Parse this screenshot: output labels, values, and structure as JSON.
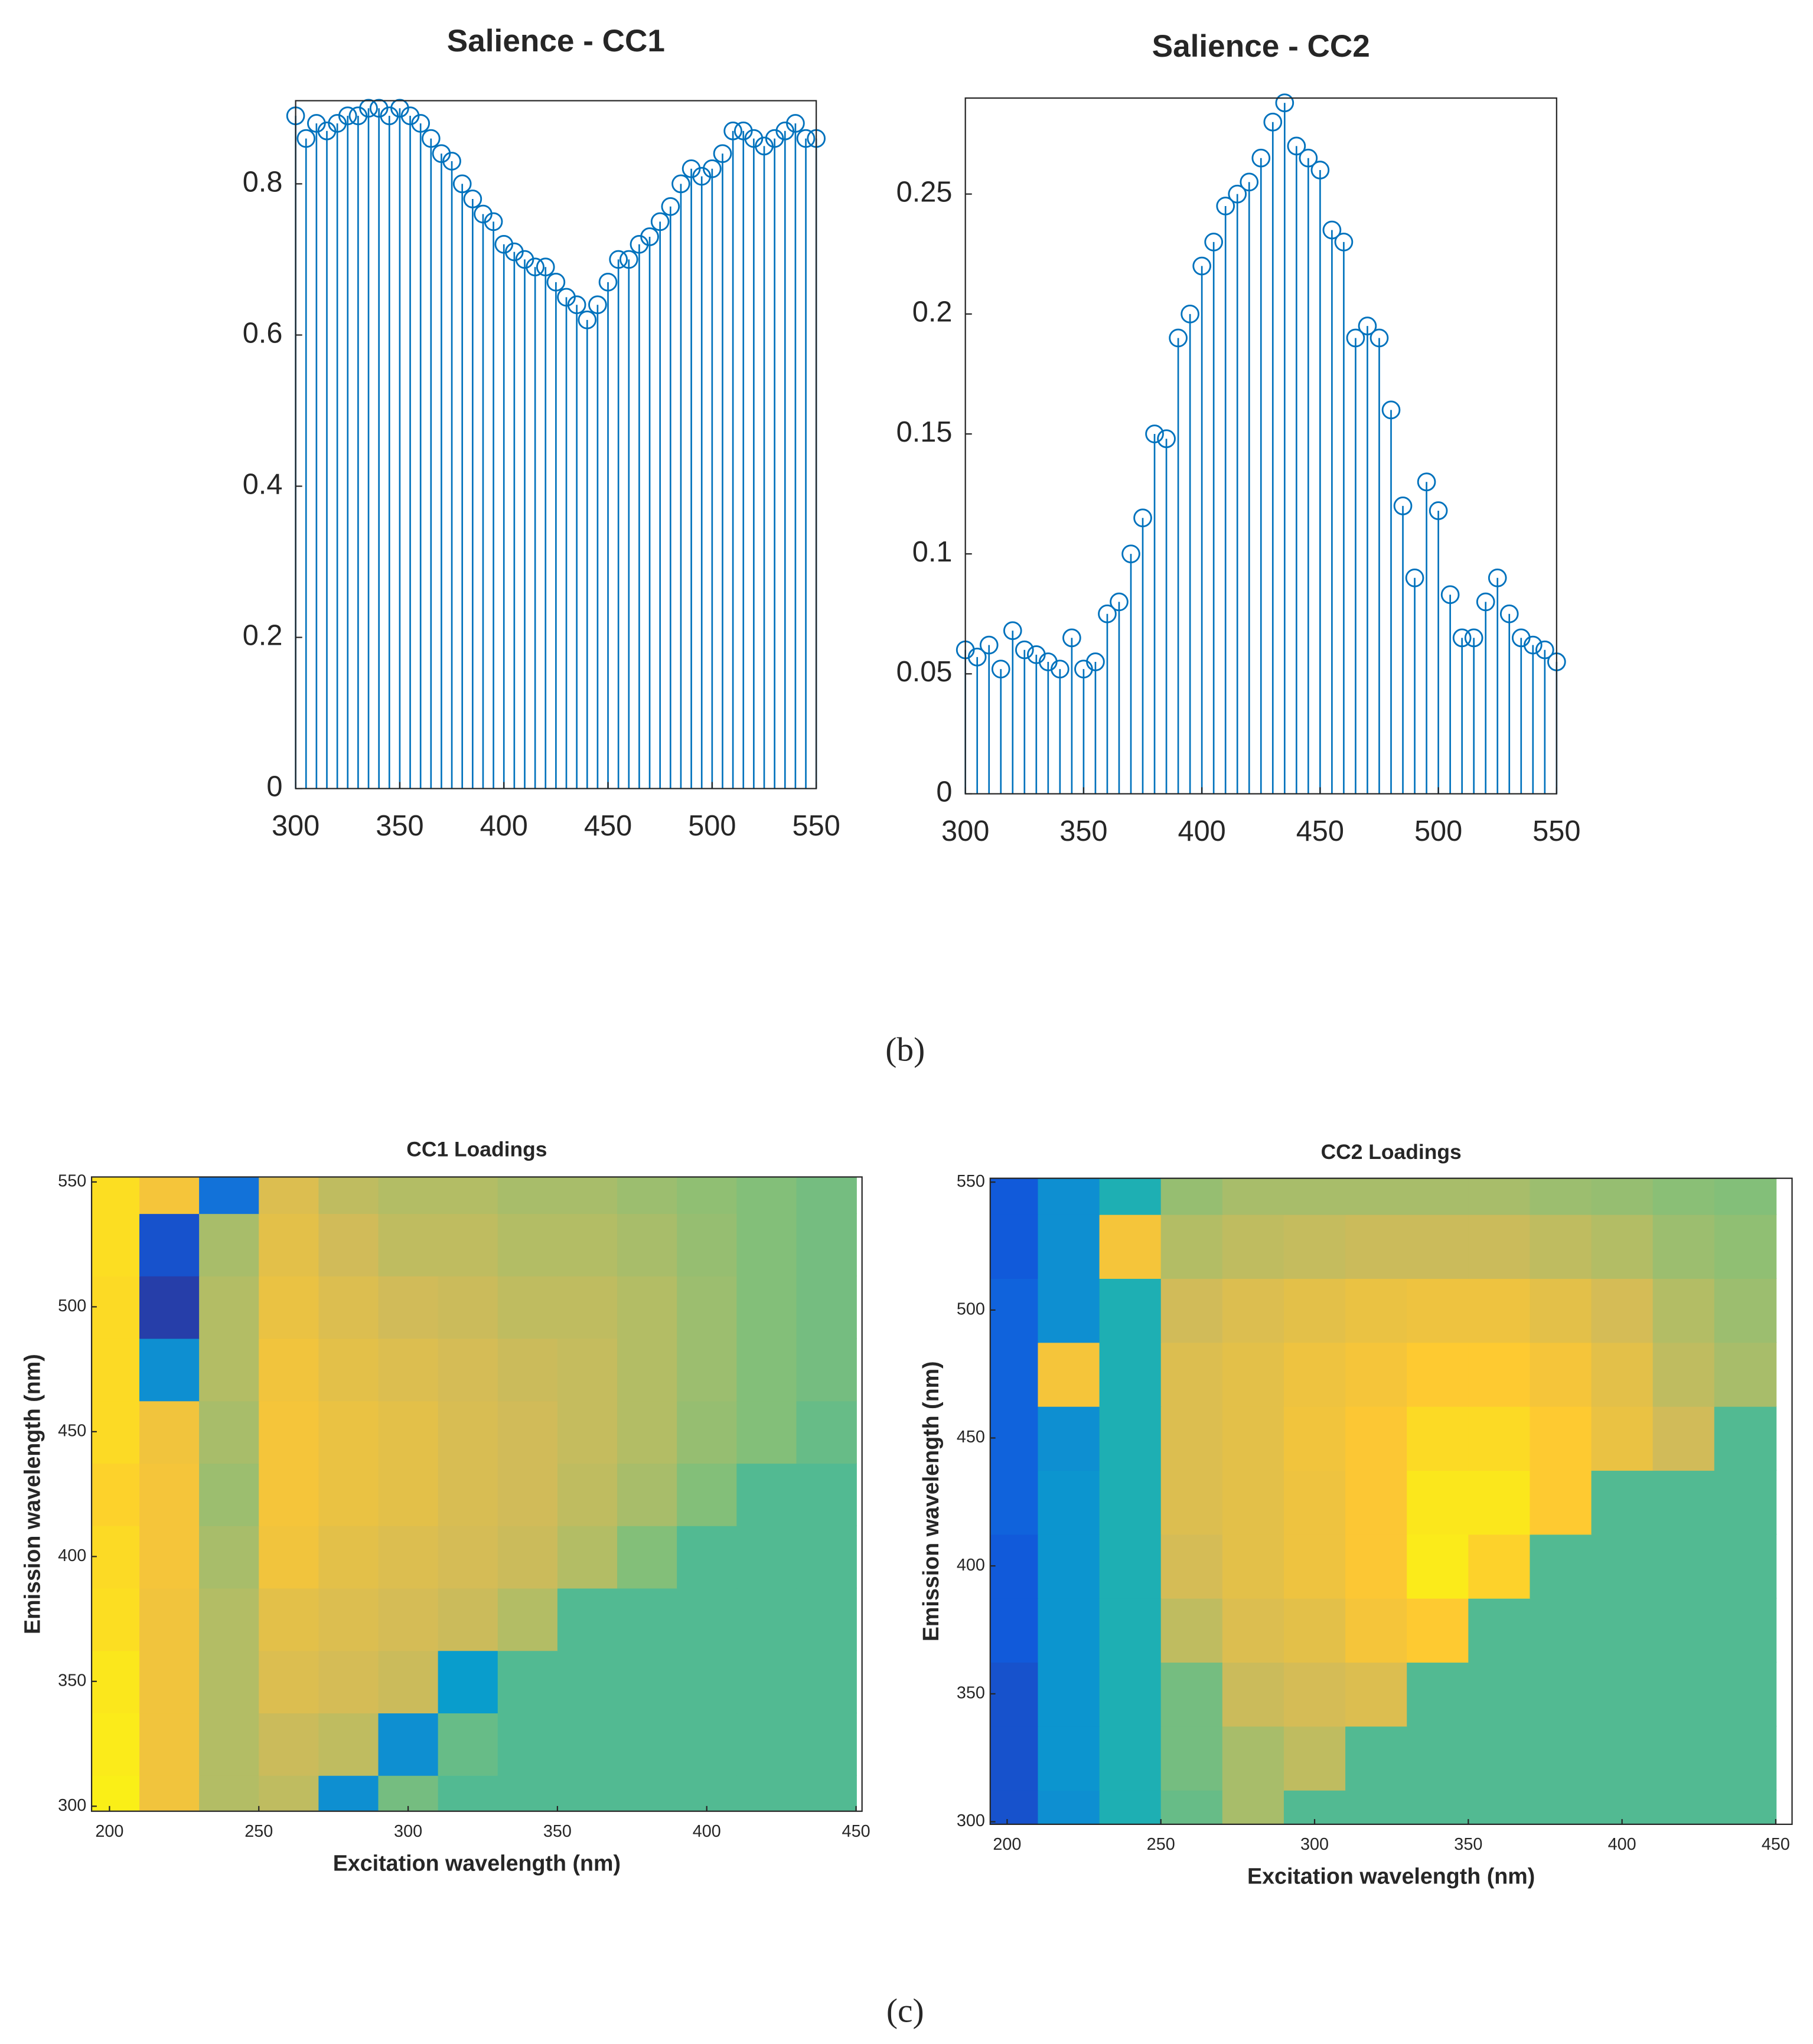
{
  "panel_labels": [
    "(b)",
    "(c)"
  ],
  "chart_data": [
    {
      "type": "stem",
      "title": "Salience - CC1",
      "color": "#0072bd",
      "x": [
        300,
        305,
        310,
        315,
        320,
        325,
        330,
        335,
        340,
        345,
        350,
        355,
        360,
        365,
        370,
        375,
        380,
        385,
        390,
        395,
        400,
        405,
        410,
        415,
        420,
        425,
        430,
        435,
        440,
        445,
        450,
        455,
        460,
        465,
        470,
        475,
        480,
        485,
        490,
        495,
        500,
        505,
        510,
        515,
        520,
        525,
        530,
        535,
        540,
        545,
        550
      ],
      "values": [
        0.89,
        0.86,
        0.88,
        0.87,
        0.88,
        0.89,
        0.89,
        0.9,
        0.9,
        0.89,
        0.9,
        0.89,
        0.88,
        0.86,
        0.84,
        0.83,
        0.8,
        0.78,
        0.76,
        0.75,
        0.72,
        0.71,
        0.7,
        0.69,
        0.69,
        0.67,
        0.65,
        0.64,
        0.62,
        0.64,
        0.67,
        0.7,
        0.7,
        0.72,
        0.73,
        0.75,
        0.77,
        0.8,
        0.82,
        0.81,
        0.82,
        0.84,
        0.87,
        0.87,
        0.86,
        0.85,
        0.86,
        0.87,
        0.88,
        0.86,
        0.86
      ],
      "xlim": [
        300,
        550
      ],
      "ylim": [
        0,
        0.91
      ],
      "xticks": [
        300,
        350,
        400,
        450,
        500,
        550
      ],
      "yticks": [
        0,
        0.2,
        0.4,
        0.6,
        0.8
      ]
    },
    {
      "type": "stem",
      "title": "Salience - CC2",
      "color": "#0072bd",
      "x": [
        300,
        305,
        310,
        315,
        320,
        325,
        330,
        335,
        340,
        345,
        350,
        355,
        360,
        365,
        370,
        375,
        380,
        385,
        390,
        395,
        400,
        405,
        410,
        415,
        420,
        425,
        430,
        435,
        440,
        445,
        450,
        455,
        460,
        465,
        470,
        475,
        480,
        485,
        490,
        495,
        500,
        505,
        510,
        515,
        520,
        525,
        530,
        535,
        540,
        545,
        550
      ],
      "values": [
        0.06,
        0.057,
        0.062,
        0.052,
        0.068,
        0.06,
        0.058,
        0.055,
        0.052,
        0.065,
        0.052,
        0.055,
        0.075,
        0.08,
        0.1,
        0.115,
        0.15,
        0.148,
        0.19,
        0.2,
        0.22,
        0.23,
        0.245,
        0.25,
        0.255,
        0.265,
        0.28,
        0.288,
        0.27,
        0.265,
        0.26,
        0.235,
        0.23,
        0.19,
        0.195,
        0.19,
        0.16,
        0.12,
        0.09,
        0.13,
        0.118,
        0.083,
        0.065,
        0.065,
        0.08,
        0.09,
        0.075,
        0.065,
        0.062,
        0.06,
        0.055
      ],
      "xlim": [
        300,
        550
      ],
      "ylim": [
        0,
        0.29
      ],
      "xticks": [
        300,
        350,
        400,
        450,
        500,
        550
      ],
      "yticks": [
        0,
        0.05,
        0.1,
        0.15,
        0.2,
        0.25
      ]
    },
    {
      "type": "heatmap",
      "title": "CC1 Loadings",
      "x_label": "Excitation wavelength (nm)",
      "y_label": "Emission wavelength (nm)",
      "x": [
        200,
        220,
        240,
        260,
        280,
        300,
        320,
        340,
        360,
        380,
        400,
        420,
        440
      ],
      "y": [
        300,
        325,
        350,
        375,
        400,
        425,
        450,
        475,
        500,
        525,
        550
      ],
      "z": [
        [
          0.97,
          0.84,
          0.7,
          0.72,
          0.3,
          0.6,
          0.55,
          0.55,
          0.55,
          0.55,
          0.55,
          0.55,
          0.55
        ],
        [
          0.96,
          0.84,
          0.7,
          0.74,
          0.72,
          0.3,
          0.58,
          0.55,
          0.55,
          0.55,
          0.55,
          0.55,
          0.55
        ],
        [
          0.95,
          0.84,
          0.7,
          0.78,
          0.76,
          0.74,
          0.35,
          0.55,
          0.55,
          0.55,
          0.55,
          0.55,
          0.55
        ],
        [
          0.93,
          0.84,
          0.7,
          0.8,
          0.78,
          0.76,
          0.74,
          0.7,
          0.55,
          0.55,
          0.55,
          0.55,
          0.55
        ],
        [
          0.92,
          0.85,
          0.68,
          0.84,
          0.8,
          0.78,
          0.76,
          0.74,
          0.7,
          0.62,
          0.55,
          0.55,
          0.55
        ],
        [
          0.9,
          0.85,
          0.66,
          0.85,
          0.82,
          0.8,
          0.77,
          0.75,
          0.72,
          0.68,
          0.62,
          0.55,
          0.55
        ],
        [
          0.92,
          0.84,
          0.68,
          0.85,
          0.82,
          0.8,
          0.77,
          0.75,
          0.73,
          0.7,
          0.65,
          0.62,
          0.58
        ],
        [
          0.92,
          0.3,
          0.7,
          0.84,
          0.8,
          0.78,
          0.76,
          0.74,
          0.73,
          0.7,
          0.66,
          0.62,
          0.6
        ],
        [
          0.92,
          0.05,
          0.7,
          0.82,
          0.78,
          0.75,
          0.74,
          0.72,
          0.72,
          0.7,
          0.66,
          0.62,
          0.6
        ],
        [
          0.93,
          0.1,
          0.68,
          0.8,
          0.75,
          0.72,
          0.72,
          0.7,
          0.7,
          0.68,
          0.65,
          0.62,
          0.6
        ],
        [
          0.93,
          0.85,
          0.2,
          0.78,
          0.72,
          0.7,
          0.7,
          0.68,
          0.68,
          0.66,
          0.64,
          0.62,
          0.6
        ]
      ],
      "xlim": [
        194,
        452
      ],
      "ylim": [
        298,
        552
      ],
      "xticks": [
        200,
        250,
        300,
        350,
        400,
        450
      ],
      "yticks": [
        300,
        350,
        400,
        450,
        500,
        550
      ],
      "clim": [
        0,
        1
      ],
      "colormap": [
        "#352a87",
        "#0f5cdd",
        "#1481d6",
        "#06a4ca",
        "#2eb7a4",
        "#87bf77",
        "#d1bb59",
        "#fec832",
        "#f9fb0e"
      ]
    },
    {
      "type": "heatmap",
      "title": "CC2 Loadings",
      "x_label": "Excitation wavelength (nm)",
      "y_label": "Emission wavelength (nm)",
      "x": [
        200,
        220,
        240,
        260,
        280,
        300,
        320,
        340,
        360,
        380,
        400,
        420,
        440
      ],
      "y": [
        300,
        325,
        350,
        375,
        400,
        425,
        450,
        475,
        500,
        525,
        550
      ],
      "z": [
        [
          0.1,
          0.3,
          0.45,
          0.58,
          0.68,
          0.55,
          0.55,
          0.55,
          0.55,
          0.55,
          0.55,
          0.55,
          0.55
        ],
        [
          0.1,
          0.32,
          0.45,
          0.6,
          0.68,
          0.72,
          0.55,
          0.55,
          0.55,
          0.55,
          0.55,
          0.55,
          0.55
        ],
        [
          0.1,
          0.32,
          0.45,
          0.6,
          0.74,
          0.76,
          0.78,
          0.55,
          0.55,
          0.55,
          0.55,
          0.55,
          0.55
        ],
        [
          0.12,
          0.32,
          0.45,
          0.72,
          0.78,
          0.8,
          0.85,
          0.88,
          0.55,
          0.55,
          0.55,
          0.55,
          0.55
        ],
        [
          0.12,
          0.32,
          0.45,
          0.76,
          0.8,
          0.83,
          0.87,
          0.96,
          0.9,
          0.55,
          0.55,
          0.55,
          0.55
        ],
        [
          0.15,
          0.32,
          0.45,
          0.78,
          0.8,
          0.83,
          0.87,
          0.95,
          0.95,
          0.88,
          0.55,
          0.55,
          0.55
        ],
        [
          0.15,
          0.3,
          0.45,
          0.78,
          0.8,
          0.84,
          0.87,
          0.92,
          0.92,
          0.88,
          0.82,
          0.75,
          0.55
        ],
        [
          0.15,
          0.85,
          0.45,
          0.78,
          0.8,
          0.83,
          0.85,
          0.88,
          0.88,
          0.85,
          0.8,
          0.72,
          0.68
        ],
        [
          0.15,
          0.3,
          0.45,
          0.75,
          0.78,
          0.8,
          0.82,
          0.83,
          0.83,
          0.8,
          0.76,
          0.7,
          0.66
        ],
        [
          0.12,
          0.3,
          0.85,
          0.7,
          0.72,
          0.73,
          0.74,
          0.74,
          0.74,
          0.72,
          0.7,
          0.66,
          0.64
        ],
        [
          0.12,
          0.3,
          0.45,
          0.65,
          0.68,
          0.68,
          0.68,
          0.68,
          0.68,
          0.66,
          0.65,
          0.63,
          0.62
        ]
      ],
      "xlim": [
        194.5,
        455.3
      ],
      "ylim": [
        299,
        551.5
      ],
      "xticks": [
        200,
        250,
        300,
        350,
        400,
        450
      ],
      "yticks": [
        300,
        350,
        400,
        450,
        500,
        550
      ],
      "clim": [
        0,
        1
      ],
      "colormap": [
        "#352a87",
        "#0f5cdd",
        "#1481d6",
        "#06a4ca",
        "#2eb7a4",
        "#87bf77",
        "#d1bb59",
        "#fec832",
        "#f9fb0e"
      ]
    }
  ]
}
